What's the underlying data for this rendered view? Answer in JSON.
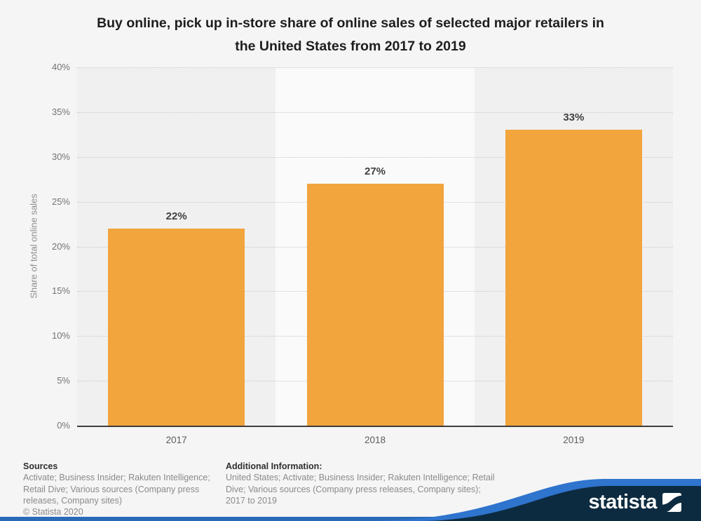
{
  "title": {
    "line1": "Buy online, pick up in-store share of online sales of selected major retailers in",
    "line2": "the United States from 2017 to 2019"
  },
  "chart_data": {
    "type": "bar",
    "title": "Buy online, pick up in-store share of online sales of selected major retailers in the United States from 2017 to 2019",
    "categories": [
      "2017",
      "2018",
      "2019"
    ],
    "values": [
      22,
      27,
      33
    ],
    "value_labels": [
      "22%",
      "27%",
      "33%"
    ],
    "ylabel": "Share of total online sales",
    "xlabel": "",
    "ylim": [
      0,
      40
    ],
    "ytick_step": 5,
    "yticks": [
      "40%",
      "35%",
      "30%",
      "25%",
      "20%",
      "15%",
      "10%",
      "5%",
      "0%"
    ],
    "grid": true,
    "legend": "none",
    "bar_color": "#f2a43d",
    "band_colors": [
      "#f0f0f0",
      "#fafafa",
      "#f0f0f0"
    ]
  },
  "footer": {
    "sources_heading": "Sources",
    "sources_lines": [
      "Activate; Business Insider; Rakuten Intelligence;",
      "Retail Dive; Various sources (Company press",
      "releases, Company sites)"
    ],
    "copyright": "© Statista 2020",
    "additional_heading": "Additional Information:",
    "additional_lines": [
      "United States; Activate; Business Insider; Rakuten Intelligence; Retail",
      "Dive; Various sources (Company press releases, Company sites);",
      "2017 to 2019"
    ]
  },
  "branding": {
    "logo_text": "statista",
    "navy": "#0d2b40",
    "swoosh_blue": "#2f74cd",
    "stripe_blue": "#2a6ab8"
  }
}
